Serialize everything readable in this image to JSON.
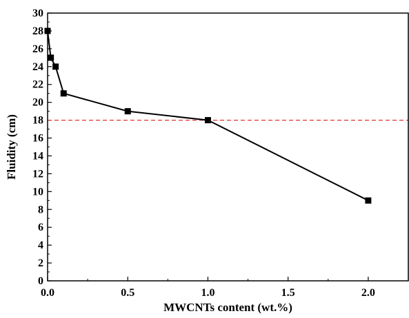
{
  "chart_data": {
    "type": "line",
    "title": "",
    "xlabel": "MWCNTs content (wt.%)",
    "ylabel": "Fluidity (cm)",
    "xlim": [
      0,
      2.25
    ],
    "ylim": [
      0,
      30
    ],
    "xticks": [
      0.0,
      0.5,
      1.0,
      1.5,
      2.0
    ],
    "xtick_labels": [
      "0.0",
      "0.5",
      "1.0",
      "1.5",
      "2.0"
    ],
    "yticks": [
      0,
      2,
      4,
      6,
      8,
      10,
      12,
      14,
      16,
      18,
      20,
      22,
      24,
      26,
      28,
      30
    ],
    "ytick_labels": [
      "0",
      "2",
      "4",
      "6",
      "8",
      "10",
      "12",
      "14",
      "16",
      "18",
      "20",
      "22",
      "24",
      "26",
      "28",
      "30"
    ],
    "grid": false,
    "series": [
      {
        "x": [
          0,
          0.02,
          0.05,
          0.1,
          0.5,
          1.0,
          2.0
        ],
        "y": [
          28,
          25,
          24,
          21,
          19,
          18,
          9
        ],
        "color": "#000000",
        "marker": "square"
      }
    ],
    "reference_lines": [
      {
        "orientation": "horizontal",
        "y": 18,
        "color": "#e03030",
        "style": "dashed"
      }
    ]
  }
}
